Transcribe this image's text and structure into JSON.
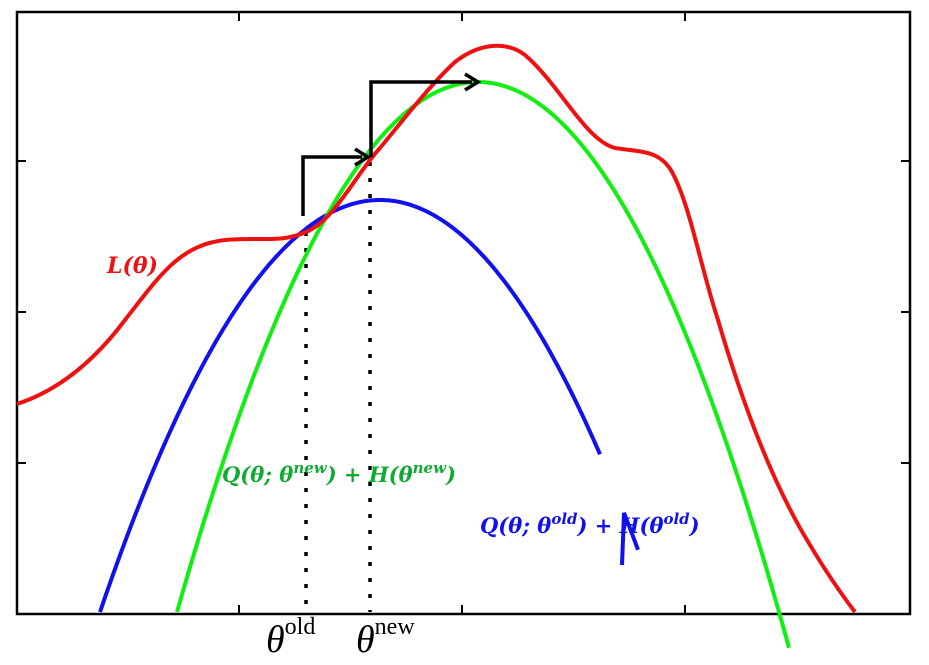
{
  "figure": {
    "colors": {
      "L": "#ee1111",
      "Q_old": "#1111ee",
      "Q_new": "#11ee11",
      "Q_new_label": "#11aa33",
      "arrow": "#000000",
      "axis": "#000000"
    },
    "labels": {
      "L_main": "L(θ)",
      "Qold_main": "Q(θ; θ",
      "Qold_sup1": "old",
      "Qold_mid": ") + H(θ",
      "Qold_sup2": "old",
      "Qold_end": ")",
      "Qnew_main": "Q(θ; θ",
      "Qnew_sup1": "new",
      "Qnew_mid": ") + H(θ",
      "Qnew_sup2": "new",
      "Qnew_end": ")",
      "theta_old_base": "θ",
      "theta_old_sup": "old",
      "theta_new_base": "θ",
      "theta_new_sup": "new"
    }
  }
}
